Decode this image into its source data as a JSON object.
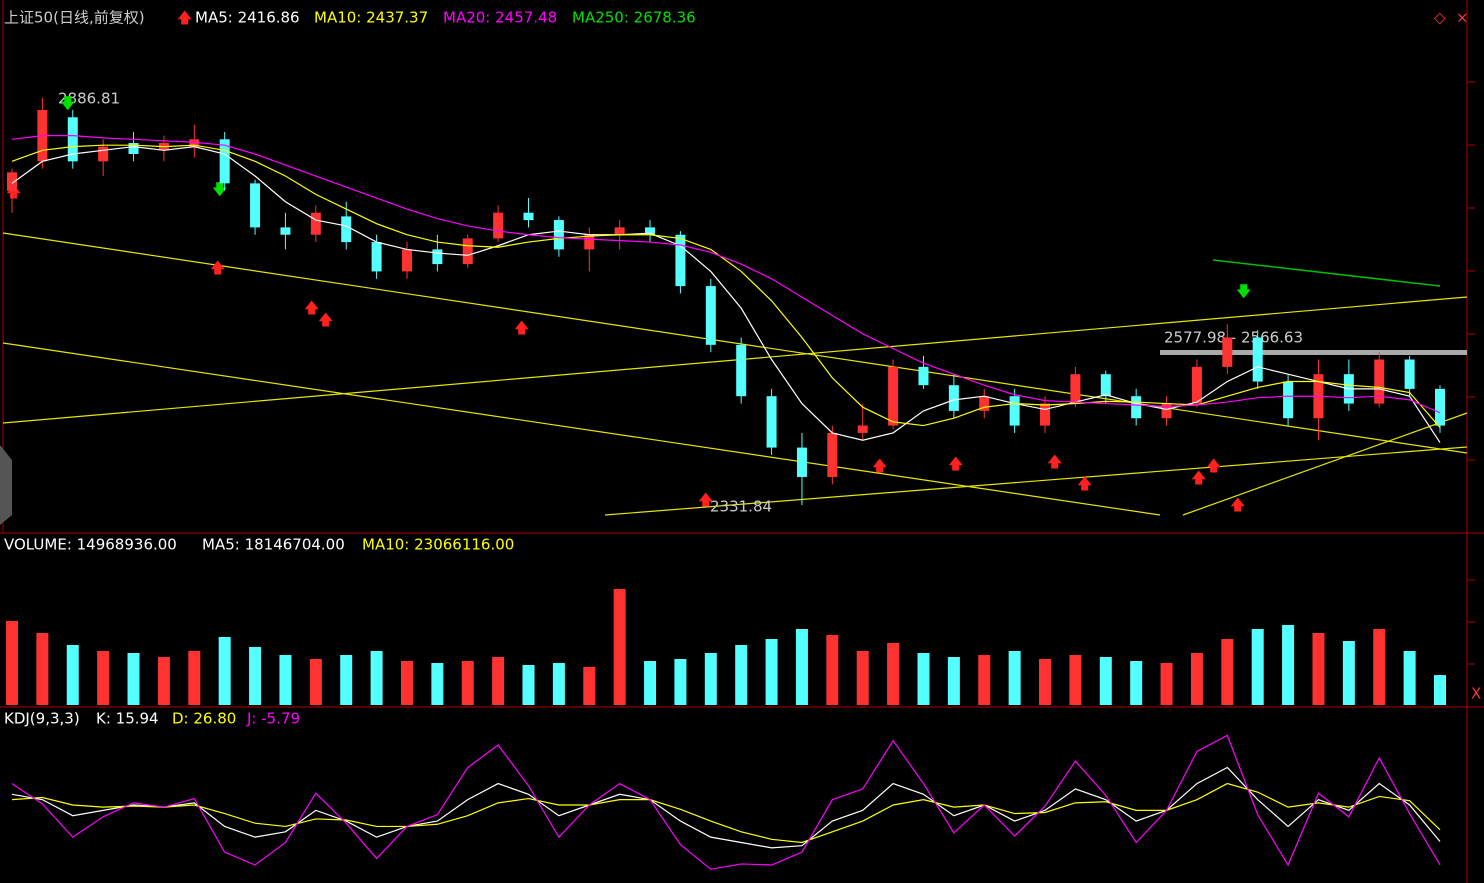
{
  "chart_data": [
    {
      "type": "candlestick",
      "legend": [
        "上证50(日线,前复权)",
        "MA5: 2416.86",
        "MA10: 2437.37",
        "MA20: 2457.48",
        "MA250: 2678.36"
      ],
      "annotations": [
        "2886.81",
        "2331.84",
        "2577.98 - 2566.63"
      ],
      "ylim": [
        2295,
        3013
      ],
      "up_color": "#ff3232",
      "down_color": "#54ffff",
      "open": [
        2760,
        2800,
        2860,
        2800,
        2825,
        2815,
        2820,
        2830,
        2770,
        2710,
        2700,
        2725,
        2690,
        2650,
        2680,
        2660,
        2695,
        2730,
        2720,
        2680,
        2700,
        2710,
        2700,
        2630,
        2550,
        2480,
        2410,
        2370,
        2430,
        2440,
        2520,
        2495,
        2460,
        2480,
        2440,
        2470,
        2510,
        2480,
        2450,
        2470,
        2520,
        2560,
        2500,
        2450,
        2510,
        2470,
        2530,
        2490
      ],
      "high": [
        2790,
        2886.81,
        2870,
        2830,
        2840,
        2835,
        2850,
        2840,
        2775,
        2730,
        2740,
        2745,
        2700,
        2690,
        2700,
        2700,
        2740,
        2750,
        2725,
        2710,
        2720,
        2720,
        2705,
        2640,
        2560,
        2490,
        2430,
        2440,
        2470,
        2530,
        2535,
        2510,
        2490,
        2490,
        2480,
        2520,
        2515,
        2490,
        2480,
        2530,
        2577.98,
        2570,
        2510,
        2530,
        2530,
        2540,
        2535,
        2495
      ],
      "low": [
        2730,
        2790,
        2790,
        2780,
        2800,
        2800,
        2805,
        2760,
        2700,
        2680,
        2690,
        2680,
        2640,
        2640,
        2650,
        2655,
        2690,
        2710,
        2670,
        2650,
        2680,
        2690,
        2620,
        2540,
        2470,
        2400,
        2331.84,
        2360,
        2420,
        2435,
        2490,
        2450,
        2450,
        2430,
        2430,
        2465,
        2470,
        2440,
        2440,
        2465,
        2510,
        2490,
        2440,
        2420,
        2460,
        2465,
        2480,
        2430
      ],
      "close": [
        2785,
        2870,
        2800,
        2820,
        2810,
        2825,
        2830,
        2770,
        2710,
        2700,
        2730,
        2690,
        2650,
        2680,
        2660,
        2695,
        2730,
        2720,
        2680,
        2700,
        2710,
        2700,
        2630,
        2550,
        2480,
        2410,
        2370,
        2430,
        2440,
        2520,
        2495,
        2460,
        2480,
        2440,
        2470,
        2510,
        2480,
        2450,
        2470,
        2520,
        2560,
        2500,
        2450,
        2510,
        2470,
        2530,
        2490,
        2440
      ],
      "series": [
        {
          "name": "MA5",
          "color": "#ffffff",
          "values": [
            2770,
            2800,
            2810,
            2815,
            2820,
            2815,
            2820,
            2810,
            2780,
            2745,
            2720,
            2712,
            2690,
            2680,
            2675,
            2672,
            2685,
            2700,
            2705,
            2700,
            2700,
            2702,
            2685,
            2650,
            2600,
            2530,
            2470,
            2430,
            2420,
            2430,
            2460,
            2475,
            2480,
            2470,
            2462,
            2472,
            2482,
            2470,
            2462,
            2472,
            2500,
            2520,
            2510,
            2500,
            2490,
            2490,
            2480,
            2416.86
          ]
        },
        {
          "name": "MA10",
          "color": "#ffff00",
          "values": [
            2800,
            2815,
            2820,
            2822,
            2822,
            2820,
            2822,
            2815,
            2800,
            2780,
            2755,
            2735,
            2715,
            2700,
            2690,
            2685,
            2683,
            2690,
            2695,
            2698,
            2700,
            2700,
            2695,
            2680,
            2650,
            2610,
            2560,
            2505,
            2465,
            2445,
            2440,
            2450,
            2465,
            2470,
            2468,
            2470,
            2473,
            2472,
            2470,
            2468,
            2480,
            2492,
            2500,
            2500,
            2495,
            2492,
            2485,
            2437.37
          ]
        },
        {
          "name": "MA20",
          "color": "#ff00ff",
          "values": [
            2830,
            2835,
            2835,
            2832,
            2830,
            2828,
            2826,
            2822,
            2810,
            2795,
            2780,
            2765,
            2750,
            2735,
            2722,
            2712,
            2705,
            2700,
            2696,
            2694,
            2692,
            2690,
            2686,
            2676,
            2660,
            2640,
            2615,
            2590,
            2565,
            2545,
            2525,
            2510,
            2495,
            2482,
            2474,
            2472,
            2470,
            2468,
            2466,
            2468,
            2472,
            2478,
            2480,
            2480,
            2478,
            2480,
            2475,
            2457.48
          ]
        }
      ]
    },
    {
      "type": "bar",
      "legend": [
        "VOLUME: 14968936.00",
        "MA5: 18146704.00",
        "MA10: 23066116.00"
      ],
      "ylim": [
        0,
        75000000
      ],
      "values": [
        42000000,
        36000000,
        30000000,
        27000000,
        26000000,
        24000000,
        27000000,
        34000000,
        29000000,
        25000000,
        23000000,
        25000000,
        27000000,
        22000000,
        21000000,
        22000000,
        24000000,
        20000000,
        21000000,
        19000000,
        58000000,
        22000000,
        23000000,
        26000000,
        30000000,
        33000000,
        38000000,
        35000000,
        27000000,
        31000000,
        26000000,
        24000000,
        25000000,
        27000000,
        23000000,
        25000000,
        24000000,
        22000000,
        21000000,
        26000000,
        33000000,
        38000000,
        40000000,
        36000000,
        32000000,
        38000000,
        27000000,
        14968936
      ]
    },
    {
      "type": "line",
      "legend": [
        "KDJ(9,3,3)",
        "K: 15.94",
        "D: 26.80",
        "J: -5.79"
      ],
      "ylim": [
        -20,
        120
      ],
      "series": [
        {
          "name": "K",
          "color": "#ffffff",
          "values": [
            60,
            55,
            40,
            45,
            50,
            48,
            52,
            30,
            20,
            25,
            45,
            35,
            20,
            30,
            35,
            55,
            70,
            60,
            40,
            50,
            60,
            55,
            35,
            20,
            15,
            10,
            12,
            35,
            45,
            70,
            60,
            40,
            50,
            35,
            45,
            65,
            55,
            35,
            45,
            70,
            85,
            55,
            30,
            55,
            45,
            70,
            50,
            15.94
          ]
        },
        {
          "name": "D",
          "color": "#ffff00",
          "values": [
            55,
            57,
            50,
            48,
            49,
            48,
            50,
            42,
            33,
            30,
            37,
            36,
            30,
            30,
            32,
            40,
            52,
            56,
            50,
            50,
            55,
            55,
            46,
            35,
            25,
            18,
            15,
            25,
            35,
            50,
            55,
            48,
            50,
            42,
            43,
            52,
            53,
            45,
            45,
            55,
            70,
            62,
            48,
            52,
            48,
            58,
            54,
            26.8
          ]
        },
        {
          "name": "J",
          "color": "#ff00ff",
          "values": [
            70,
            51,
            20,
            39,
            52,
            48,
            56,
            6,
            -6,
            15,
            61,
            33,
            0,
            30,
            41,
            85,
            106,
            68,
            20,
            50,
            70,
            55,
            13,
            -10,
            -5,
            -6,
            6,
            55,
            65,
            110,
            70,
            24,
            50,
            21,
            49,
            91,
            59,
            15,
            45,
            100,
            115,
            41,
            -6,
            61,
            39,
            94,
            42,
            -5.79
          ]
        }
      ]
    }
  ]
}
